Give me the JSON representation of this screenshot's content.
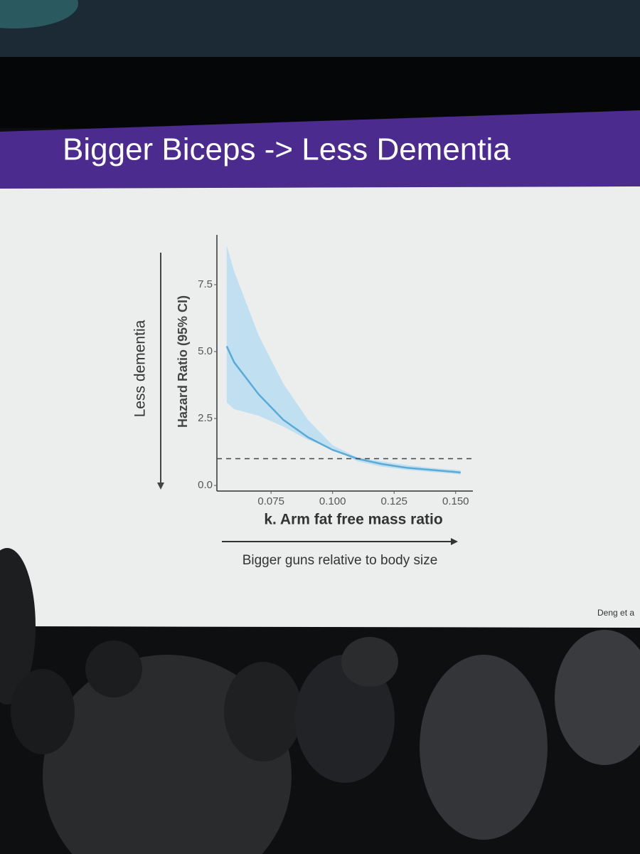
{
  "chart_data": {
    "type": "line",
    "title": "Bigger Biceps -> Less Dementia",
    "x_label": "k. Arm fat free mass ratio",
    "y_label": "Hazard Ratio (95% CI)",
    "annotations": [
      "Less dementia",
      "Bigger guns relative to body size"
    ],
    "source": "Deng et a",
    "x": [
      0.057,
      0.06,
      0.07,
      0.08,
      0.09,
      0.1,
      0.11,
      0.12,
      0.13,
      0.14,
      0.15,
      0.152
    ],
    "series": [
      {
        "color": "#5aaad8",
        "band_color": "#b9dcf0",
        "values": [
          5.2,
          4.6,
          3.4,
          2.45,
          1.8,
          1.33,
          1.0,
          0.8,
          0.66,
          0.58,
          0.5,
          0.48
        ],
        "lower": [
          3.1,
          2.85,
          2.6,
          2.2,
          1.7,
          1.38,
          0.9,
          0.7,
          0.58,
          0.5,
          0.43,
          0.4
        ],
        "upper": [
          8.96,
          8.0,
          5.6,
          3.8,
          2.45,
          1.5,
          1.05,
          0.9,
          0.76,
          0.66,
          0.58,
          0.56
        ]
      }
    ],
    "reference_line": 1,
    "xlim": [
      0.053,
      0.157
    ],
    "ylim": [
      -0.21,
      9.36
    ],
    "xticks": [
      0.075,
      {
        "value": 0.1,
        "label": "0.100"
      },
      0.125,
      {
        "value": 0.15,
        "label": "0.150"
      }
    ],
    "yticks": [
      {
        "value": 0,
        "label": "0.0"
      },
      2.5,
      {
        "value": 5,
        "label": "5.0"
      },
      7.5
    ]
  }
}
